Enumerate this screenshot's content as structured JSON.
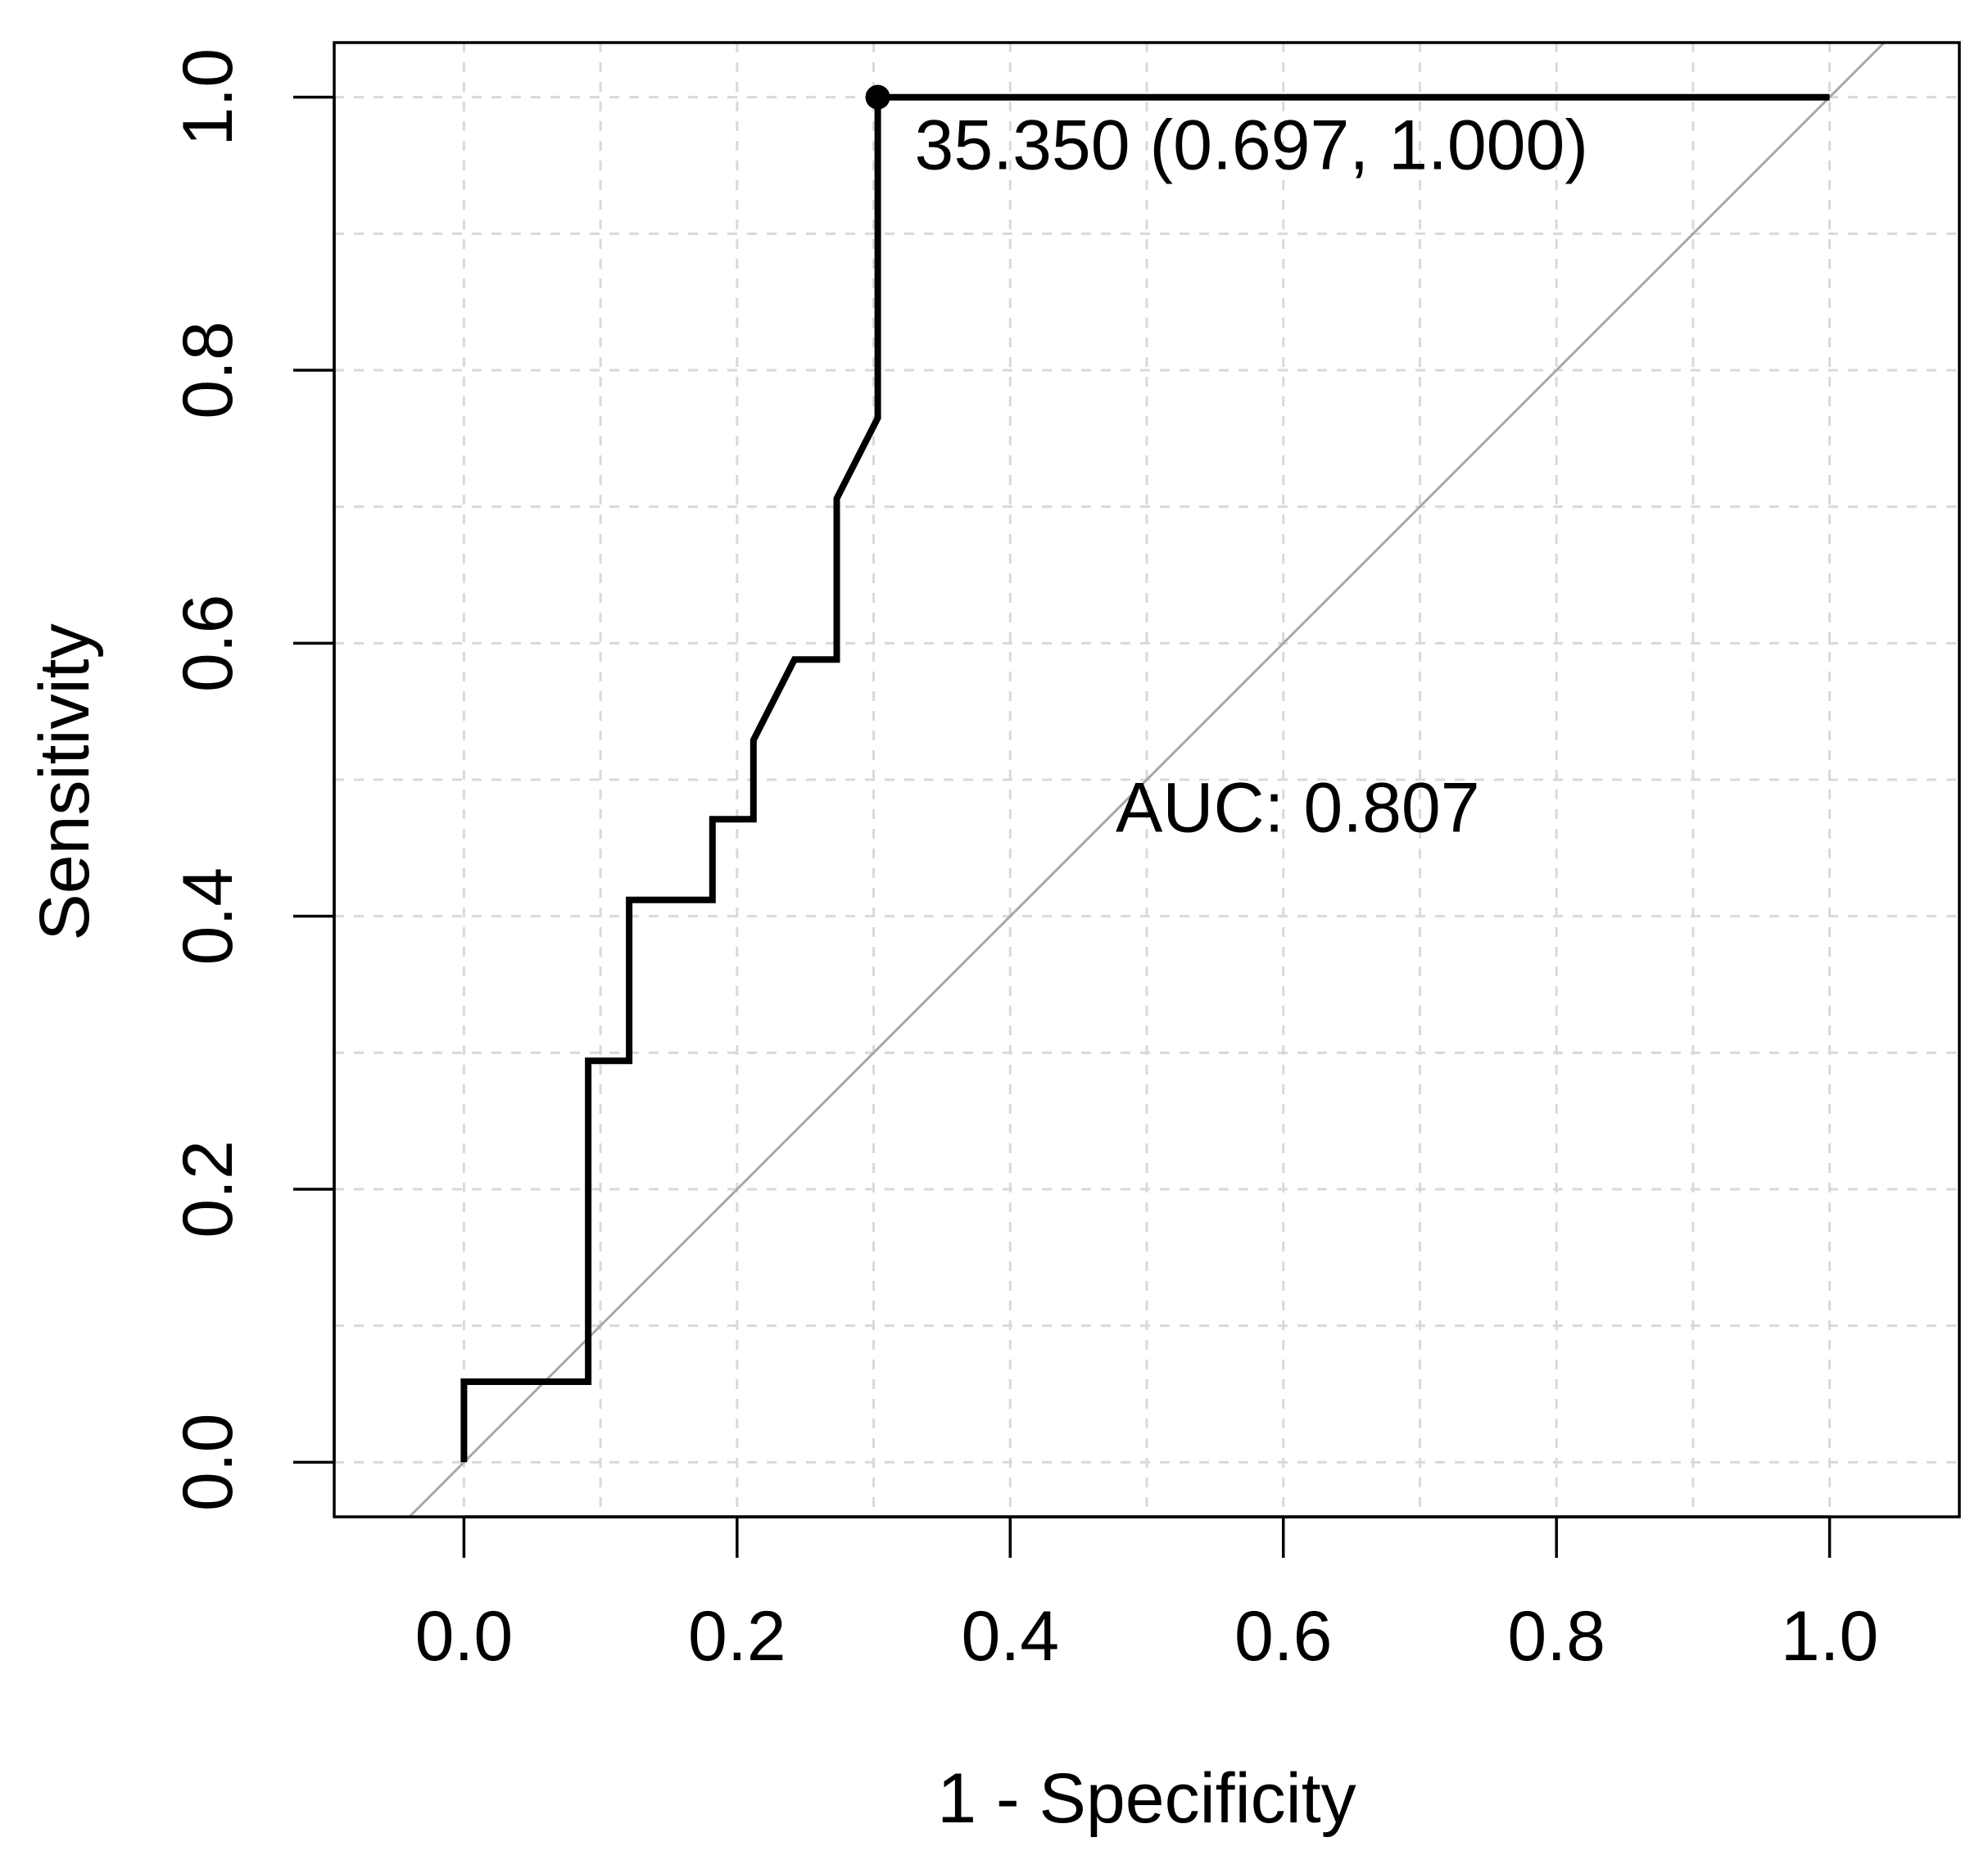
{
  "chart_data": {
    "type": "line",
    "title": "",
    "xlabel": "1 - Specificity",
    "ylabel": "Sensitivity",
    "xlim": [
      -0.095,
      1.095
    ],
    "ylim": [
      -0.04,
      1.04
    ],
    "grid": true,
    "xticks": [
      0.0,
      0.2,
      0.4,
      0.6,
      0.8,
      1.0
    ],
    "xtick_labels": [
      "0.0",
      "0.2",
      "0.4",
      "0.6",
      "0.8",
      "1.0"
    ],
    "yticks": [
      0.0,
      0.2,
      0.4,
      0.6,
      0.8,
      1.0
    ],
    "ytick_labels": [
      "0.0",
      "0.2",
      "0.4",
      "0.6",
      "0.8",
      "1.0"
    ],
    "grid_lines": [
      0.0,
      0.1,
      0.2,
      0.3,
      0.4,
      0.5,
      0.6,
      0.7,
      0.8,
      0.9,
      1.0
    ],
    "series": [
      {
        "name": "ROC curve",
        "color": "#000000",
        "x": [
          0.0,
          0.0,
          0.091,
          0.091,
          0.121,
          0.121,
          0.182,
          0.182,
          0.212,
          0.212,
          0.242,
          0.273,
          0.273,
          0.303,
          0.303,
          1.0
        ],
        "y": [
          0.0,
          0.059,
          0.059,
          0.294,
          0.294,
          0.412,
          0.412,
          0.471,
          0.471,
          0.529,
          0.588,
          0.588,
          0.706,
          0.765,
          1.0,
          1.0
        ]
      }
    ],
    "reference_line": {
      "name": "chance diagonal",
      "color": "#a8a8a8",
      "x": [
        -0.04,
        1.04
      ],
      "y": [
        -0.04,
        1.04
      ]
    },
    "best_threshold": {
      "x": 0.303,
      "y": 1.0,
      "label": "35.350 (0.697, 1.000)"
    },
    "auc_label": "AUC: 0.807",
    "auc_label_anchor": [
      0.5,
      0.48
    ]
  }
}
